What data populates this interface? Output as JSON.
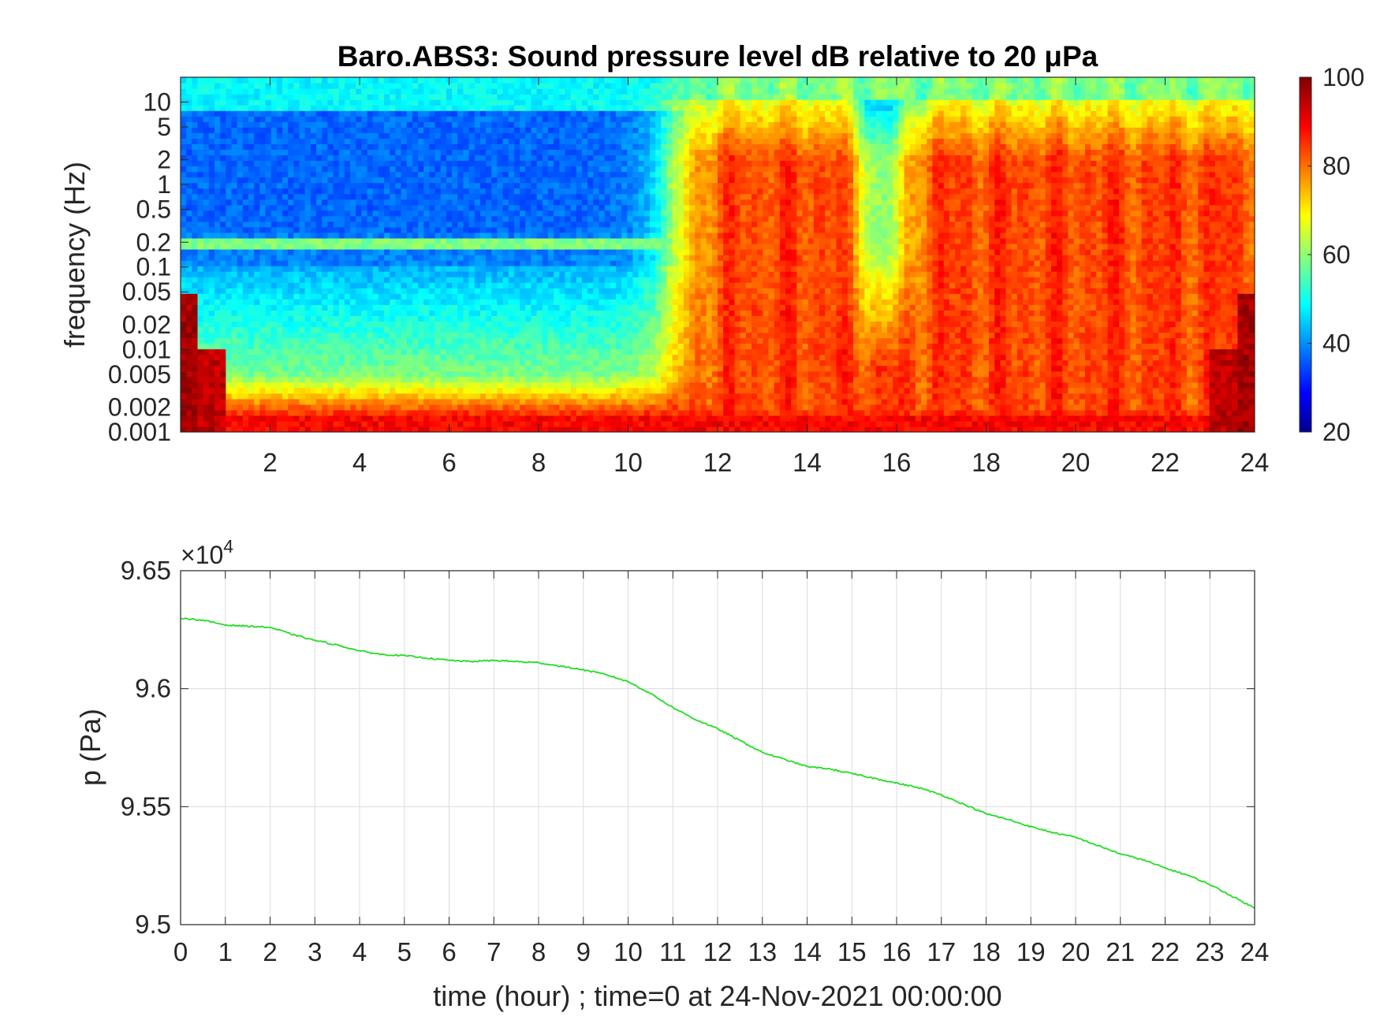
{
  "chart_data": [
    {
      "type": "heatmap",
      "title": "Baro.ABS3: Sound pressure level dB relative to 20 μPa",
      "xlabel": "",
      "ylabel": "frequency (Hz)",
      "x_range": [
        0,
        24
      ],
      "x_ticks": [
        2,
        4,
        6,
        8,
        10,
        12,
        14,
        16,
        18,
        20,
        22,
        24
      ],
      "y_scale": "log",
      "y_range": [
        0.001,
        20
      ],
      "y_ticks": [
        0.001,
        0.002,
        0.005,
        0.01,
        0.02,
        0.05,
        0.1,
        0.2,
        0.5,
        1,
        2,
        5,
        10
      ],
      "y_tick_labels": [
        "0.001",
        "0.002",
        "0.005",
        "0.01",
        "0.02",
        "0.05",
        "0.1",
        "0.2",
        "0.5",
        "1",
        "2",
        "5",
        "10"
      ],
      "colormap": "jet",
      "colorbar_range": [
        20,
        100
      ],
      "colorbar_ticks": [
        20,
        40,
        60,
        80,
        100
      ],
      "active_period_hours": [
        11,
        24
      ],
      "quiet_level_db": 40,
      "active_level_db": 85,
      "low_freq_level_db": 90,
      "narrowband_line_hz": 0.2
    },
    {
      "type": "line",
      "title": "",
      "xlabel": "time (hour) ; time=0 at 24-Nov-2021 00:00:00",
      "ylabel": "p (Pa)",
      "exponent_label": "×10",
      "exponent_power": "4",
      "x_range": [
        0,
        24
      ],
      "x_ticks": [
        0,
        1,
        2,
        3,
        4,
        5,
        6,
        7,
        8,
        9,
        10,
        11,
        12,
        13,
        14,
        15,
        16,
        17,
        18,
        19,
        20,
        21,
        22,
        23,
        24
      ],
      "y_range": [
        95000,
        96500
      ],
      "y_ticks": [
        95000,
        95500,
        96000,
        96500
      ],
      "y_tick_labels": [
        "9.5",
        "9.55",
        "9.6",
        "9.65"
      ],
      "grid": true,
      "series": [
        {
          "color": "#22dd22",
          "x": [
            0,
            0.5,
            1,
            1.5,
            2,
            2.5,
            3,
            3.5,
            4,
            4.5,
            5,
            5.5,
            6,
            6.5,
            7,
            7.5,
            8,
            8.5,
            9,
            9.5,
            10,
            10.5,
            11,
            11.5,
            12,
            12.5,
            13,
            13.5,
            14,
            14.5,
            15,
            15.5,
            16,
            16.5,
            17,
            17.5,
            18,
            18.5,
            19,
            19.5,
            20,
            20.5,
            21,
            21.5,
            22,
            22.5,
            23,
            23.5,
            24
          ],
          "y": [
            96300,
            96290,
            96270,
            96265,
            96260,
            96230,
            96205,
            96185,
            96160,
            96145,
            96140,
            96130,
            96120,
            96115,
            96120,
            96115,
            96110,
            96095,
            96080,
            96060,
            96030,
            95980,
            95920,
            95870,
            95830,
            95780,
            95730,
            95700,
            95670,
            95660,
            95640,
            95620,
            95600,
            95580,
            95550,
            95510,
            95470,
            95445,
            95415,
            95390,
            95370,
            95335,
            95300,
            95275,
            95240,
            95210,
            95170,
            95120,
            95070
          ]
        }
      ]
    }
  ]
}
